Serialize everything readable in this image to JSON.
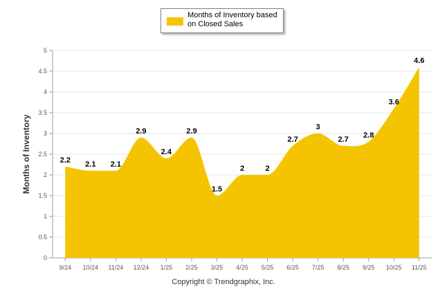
{
  "chart_data": {
    "type": "area",
    "categories": [
      "9/24",
      "10/24",
      "11/24",
      "12/24",
      "1/25",
      "2/25",
      "3/25",
      "4/25",
      "5/25",
      "6/25",
      "7/25",
      "8/25",
      "9/25",
      "10/25",
      "11/25"
    ],
    "series": [
      {
        "name": "Months of Inventory based on Closed Sales",
        "values": [
          2.2,
          2.1,
          2.1,
          2.9,
          2.4,
          2.9,
          1.5,
          2,
          2,
          2.7,
          3,
          2.7,
          2.8,
          3.6,
          4.6
        ],
        "labels": [
          "2.2",
          "2.1",
          "2.1",
          "2.9",
          "2.4",
          "2.9",
          "1.5",
          "2",
          "2",
          "2.7",
          "3",
          "2.7",
          "2.8",
          "3.6",
          "4.6"
        ],
        "color": "#F5C400"
      }
    ],
    "title": "",
    "xlabel": "",
    "ylabel": "Months of Inventory",
    "ylim": [
      0,
      5
    ],
    "yticks": [
      "0",
      "0.5",
      "1",
      "1.5",
      "2",
      "2.5",
      "3",
      "3.5",
      "4",
      "4.5",
      "5"
    ],
    "grid": true,
    "legend_position": "top-center"
  },
  "copyright": "Copyright © Trendgraphix, Inc."
}
